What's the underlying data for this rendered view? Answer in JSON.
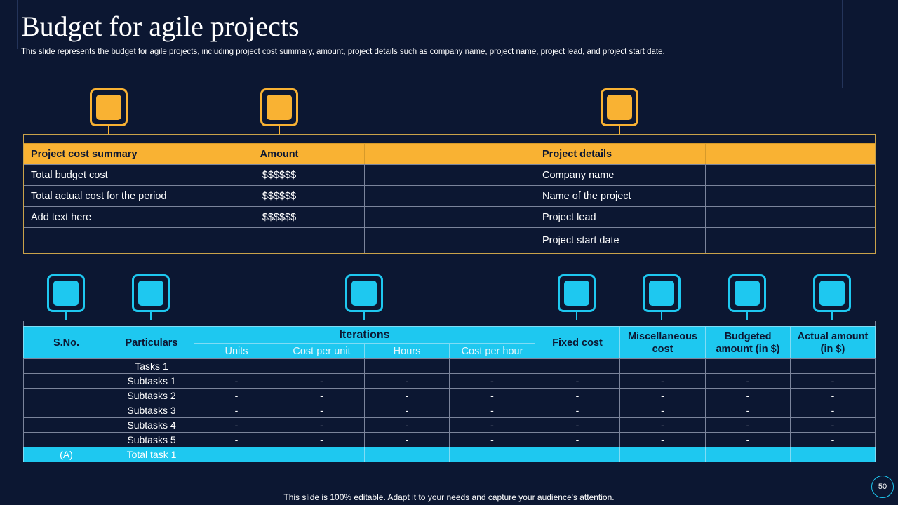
{
  "header": {
    "title": "Budget for agile projects",
    "subtitle": "This slide represents the budget for agile projects, including project cost summary, amount, project details such as company name, project name, project lead, and project start date."
  },
  "top_table": {
    "cost_headers": [
      "Project cost summary",
      "Amount"
    ],
    "cost_rows": [
      [
        "Total budget cost",
        "$$$$$$"
      ],
      [
        "Total actual cost for the period",
        "$$$$$$"
      ],
      [
        "Add text here",
        "$$$$$$"
      ]
    ],
    "details_header": "Project details",
    "details_rows": [
      "Company name",
      "Name of the project",
      "Project lead",
      "Project start date"
    ]
  },
  "bottom_table": {
    "headers": {
      "sno": "S.No.",
      "particulars": "Particulars",
      "iterations": "Iterations",
      "iteration_columns": [
        "Units",
        "Cost per unit",
        "Hours",
        "Cost per hour"
      ],
      "other_columns": [
        "Fixed cost",
        "Miscellaneous cost",
        "Budgeted amount (in $)",
        "Actual amount (in $)"
      ]
    },
    "task_row": "Tasks 1",
    "subtask_rows": [
      {
        "particular": "Subtasks 1",
        "cells": [
          "-",
          "-",
          "-",
          "-",
          "-",
          "-",
          "-",
          "-"
        ]
      },
      {
        "particular": "Subtasks 2",
        "cells": [
          "-",
          "-",
          "-",
          "-",
          "-",
          "-",
          "-",
          "-"
        ]
      },
      {
        "particular": "Subtasks 3",
        "cells": [
          "-",
          "-",
          "-",
          "-",
          "-",
          "-",
          "-",
          "-"
        ]
      },
      {
        "particular": "Subtasks 4",
        "cells": [
          "-",
          "-",
          "-",
          "-",
          "-",
          "-",
          "-",
          "-"
        ]
      },
      {
        "particular": "Subtasks 5",
        "cells": [
          "-",
          "-",
          "-",
          "-",
          "-",
          "-",
          "-",
          "-"
        ]
      }
    ],
    "total_row": {
      "sno": "(A)",
      "particular": "Total task 1"
    }
  },
  "footer": {
    "note": "This slide is 100% editable. Adapt it to your needs and capture your audience's attention.",
    "page_number": 50
  }
}
